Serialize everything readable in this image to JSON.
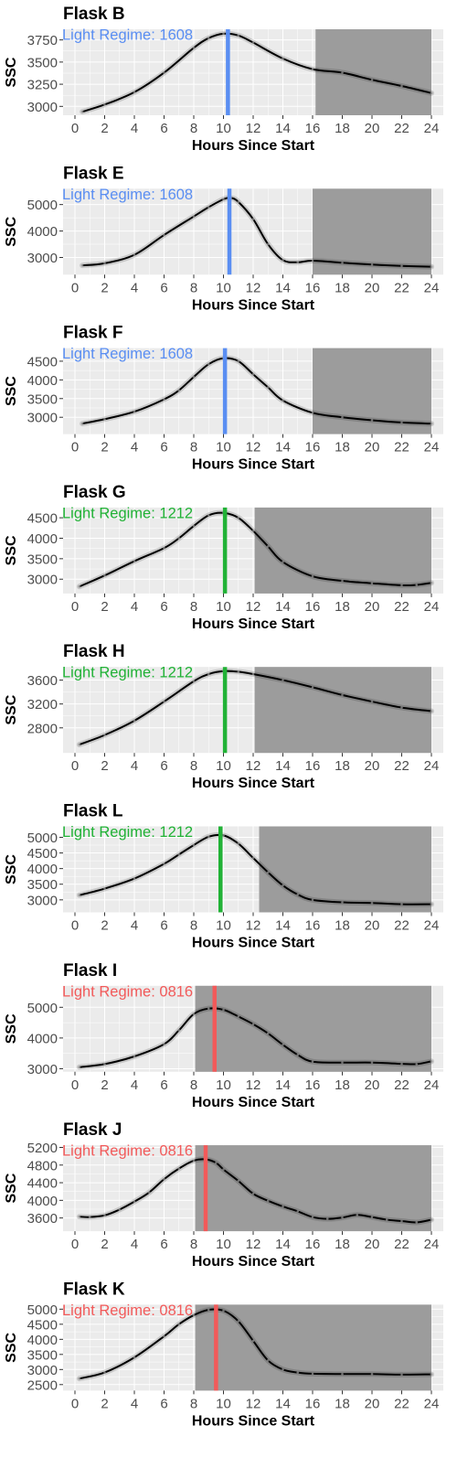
{
  "chart_data": [
    {
      "type": "line",
      "title": "Flask B",
      "xlabel": "Hours Since Start",
      "ylabel": "SSC",
      "xlim": [
        -0.8,
        24.8
      ],
      "ylim": [
        2900,
        3870
      ],
      "xticks": [
        0,
        2,
        4,
        6,
        8,
        10,
        12,
        14,
        16,
        18,
        20,
        22,
        24
      ],
      "yticks": [
        3000,
        3250,
        3500,
        3750
      ],
      "annotation": {
        "label": "Light Regime:",
        "value": "1608",
        "color": "#5a8ef2",
        "x": 10.3
      },
      "dark_period": [
        16.2,
        24
      ],
      "colors": {
        "panel": "#ebebeb",
        "grid": "#ffffff",
        "dark": "#9c9c9c",
        "line": "#000000"
      },
      "x": [
        0.5,
        2,
        4,
        6,
        8,
        9,
        10,
        11,
        12,
        14,
        16,
        18,
        20,
        22,
        24
      ],
      "values": [
        2940,
        3020,
        3160,
        3380,
        3660,
        3770,
        3820,
        3800,
        3720,
        3540,
        3420,
        3380,
        3300,
        3230,
        3150
      ]
    },
    {
      "type": "line",
      "title": "Flask E",
      "xlabel": "Hours Since Start",
      "ylabel": "SSC",
      "xlim": [
        -0.8,
        24.8
      ],
      "ylim": [
        2350,
        5600
      ],
      "xticks": [
        0,
        2,
        4,
        6,
        8,
        10,
        12,
        14,
        16,
        18,
        20,
        22,
        24
      ],
      "yticks": [
        3000,
        4000,
        5000
      ],
      "annotation": {
        "label": "Light Regime:",
        "value": "1608",
        "color": "#5a8ef2",
        "x": 10.4
      },
      "dark_period": [
        16.0,
        24
      ],
      "colors": {
        "panel": "#ebebeb",
        "grid": "#ffffff",
        "dark": "#9c9c9c",
        "line": "#000000"
      },
      "x": [
        0.5,
        2,
        4,
        6,
        8,
        9,
        10,
        10.5,
        11,
        12,
        13,
        14,
        15,
        16,
        18,
        20,
        22,
        24
      ],
      "values": [
        2700,
        2780,
        3100,
        3850,
        4550,
        4900,
        5200,
        5250,
        5100,
        4450,
        3500,
        2900,
        2820,
        2880,
        2800,
        2730,
        2680,
        2650
      ]
    },
    {
      "type": "line",
      "title": "Flask F",
      "xlabel": "Hours Since Start",
      "ylabel": "SSC",
      "xlim": [
        -0.8,
        24.8
      ],
      "ylim": [
        2550,
        4850
      ],
      "xticks": [
        0,
        2,
        4,
        6,
        8,
        10,
        12,
        14,
        16,
        18,
        20,
        22,
        24
      ],
      "yticks": [
        3000,
        3500,
        4000,
        4500
      ],
      "annotation": {
        "label": "Light Regime:",
        "value": "1608",
        "color": "#5a8ef2",
        "x": 10.1
      },
      "dark_period": [
        16.0,
        24
      ],
      "colors": {
        "panel": "#ebebeb",
        "grid": "#ffffff",
        "dark": "#9c9c9c",
        "line": "#000000"
      },
      "x": [
        0.5,
        2,
        4,
        6,
        7,
        8,
        9,
        10,
        11,
        12,
        13,
        14,
        16,
        18,
        20,
        22,
        24
      ],
      "values": [
        2830,
        2950,
        3150,
        3480,
        3720,
        4080,
        4420,
        4580,
        4500,
        4150,
        3800,
        3450,
        3120,
        3000,
        2920,
        2860,
        2830
      ]
    },
    {
      "type": "line",
      "title": "Flask G",
      "xlabel": "Hours Since Start",
      "ylabel": "SSC",
      "xlim": [
        -0.8,
        24.8
      ],
      "ylim": [
        2650,
        4750
      ],
      "xticks": [
        0,
        2,
        4,
        6,
        8,
        10,
        12,
        14,
        16,
        18,
        20,
        22,
        24
      ],
      "yticks": [
        3000,
        3500,
        4000,
        4500
      ],
      "annotation": {
        "label": "Light Regime:",
        "value": "1212",
        "color": "#21b236",
        "x": 10.1
      },
      "dark_period": [
        12.1,
        24
      ],
      "colors": {
        "panel": "#ebebeb",
        "grid": "#ffffff",
        "dark": "#9c9c9c",
        "line": "#000000"
      },
      "x": [
        0.3,
        2,
        4,
        6,
        7,
        8,
        9,
        10,
        11,
        12,
        13,
        14,
        16,
        18,
        20,
        22,
        23,
        24
      ],
      "values": [
        2820,
        3090,
        3440,
        3760,
        4000,
        4300,
        4560,
        4620,
        4500,
        4180,
        3800,
        3420,
        3070,
        2960,
        2900,
        2850,
        2860,
        2910
      ]
    },
    {
      "type": "line",
      "title": "Flask H",
      "xlabel": "Hours Since Start",
      "ylabel": "SSC",
      "xlim": [
        -0.8,
        24.8
      ],
      "ylim": [
        2380,
        3820
      ],
      "xticks": [
        0,
        2,
        4,
        6,
        8,
        10,
        12,
        14,
        16,
        18,
        20,
        22,
        24
      ],
      "yticks": [
        2800,
        3200,
        3600
      ],
      "annotation": {
        "label": "Light Regime:",
        "value": "1212",
        "color": "#21b236",
        "x": 10.1
      },
      "dark_period": [
        12.1,
        24
      ],
      "colors": {
        "panel": "#ebebeb",
        "grid": "#ffffff",
        "dark": "#9c9c9c",
        "line": "#000000"
      },
      "x": [
        0.3,
        2,
        4,
        6,
        8,
        9,
        10,
        11,
        12,
        14,
        16,
        18,
        20,
        22,
        24
      ],
      "values": [
        2520,
        2680,
        2920,
        3240,
        3580,
        3700,
        3750,
        3740,
        3700,
        3600,
        3480,
        3350,
        3240,
        3140,
        3080
      ]
    },
    {
      "type": "line",
      "title": "Flask L",
      "xlabel": "Hours Since Start",
      "ylabel": "SSC",
      "xlim": [
        -0.8,
        24.8
      ],
      "ylim": [
        2600,
        5350
      ],
      "xticks": [
        0,
        2,
        4,
        6,
        8,
        10,
        12,
        14,
        16,
        18,
        20,
        22,
        24
      ],
      "yticks": [
        3000,
        3500,
        4000,
        4500,
        5000
      ],
      "annotation": {
        "label": "Light Regime:",
        "value": "1212",
        "color": "#21b236",
        "x": 9.8
      },
      "dark_period": [
        12.4,
        24
      ],
      "colors": {
        "panel": "#ebebeb",
        "grid": "#ffffff",
        "dark": "#9c9c9c",
        "line": "#000000"
      },
      "x": [
        0.3,
        2,
        4,
        6,
        7,
        8,
        9,
        10,
        11,
        12,
        13,
        14,
        15,
        16,
        18,
        20,
        22,
        24
      ],
      "values": [
        3150,
        3360,
        3680,
        4150,
        4450,
        4750,
        5020,
        5060,
        4800,
        4340,
        3880,
        3460,
        3170,
        3000,
        2920,
        2900,
        2860,
        2860
      ]
    },
    {
      "type": "line",
      "title": "Flask I",
      "xlabel": "Hours Since Start",
      "ylabel": "SSC",
      "xlim": [
        -0.8,
        24.8
      ],
      "ylim": [
        2900,
        5700
      ],
      "xticks": [
        0,
        2,
        4,
        6,
        8,
        10,
        12,
        14,
        16,
        18,
        20,
        22,
        24
      ],
      "yticks": [
        3000,
        4000,
        5000
      ],
      "annotation": {
        "label": "Light Regime:",
        "value": "0816",
        "color": "#f25a5a",
        "x": 9.4
      },
      "dark_period": [
        8.1,
        24
      ],
      "colors": {
        "panel": "#ebebeb",
        "grid": "#ffffff",
        "dark": "#9c9c9c",
        "line": "#000000"
      },
      "x": [
        0.3,
        2,
        4,
        6,
        7,
        8,
        9,
        10,
        11,
        12,
        13,
        14,
        15,
        16,
        18,
        20,
        22,
        23,
        24
      ],
      "values": [
        3050,
        3150,
        3400,
        3800,
        4250,
        4780,
        4960,
        4920,
        4700,
        4450,
        4150,
        3780,
        3450,
        3230,
        3200,
        3200,
        3160,
        3150,
        3240
      ]
    },
    {
      "type": "line",
      "title": "Flask J",
      "xlabel": "Hours Since Start",
      "ylabel": "SSC",
      "xlim": [
        -0.8,
        24.8
      ],
      "ylim": [
        3300,
        5250
      ],
      "xticks": [
        0,
        2,
        4,
        6,
        8,
        10,
        12,
        14,
        16,
        18,
        20,
        22,
        24
      ],
      "yticks": [
        3600,
        4000,
        4400,
        4800,
        5200
      ],
      "annotation": {
        "label": "Light Regime:",
        "value": "0816",
        "color": "#f25a5a",
        "x": 8.8
      },
      "dark_period": [
        8.1,
        24
      ],
      "colors": {
        "panel": "#ebebeb",
        "grid": "#ffffff",
        "dark": "#9c9c9c",
        "line": "#000000"
      },
      "x": [
        0.3,
        1,
        2,
        3,
        4,
        5,
        6,
        7,
        8,
        8.8,
        9.5,
        10,
        11,
        12,
        13,
        14,
        15,
        16,
        17,
        18,
        19,
        20,
        21,
        22,
        23,
        24
      ],
      "values": [
        3630,
        3620,
        3660,
        3790,
        3970,
        4180,
        4480,
        4720,
        4900,
        4930,
        4850,
        4700,
        4440,
        4150,
        3990,
        3860,
        3750,
        3620,
        3580,
        3610,
        3670,
        3620,
        3560,
        3530,
        3500,
        3560
      ]
    },
    {
      "type": "line",
      "title": "Flask K",
      "xlabel": "Hours Since Start",
      "ylabel": "SSC",
      "xlim": [
        -0.8,
        24.8
      ],
      "ylim": [
        2300,
        5150
      ],
      "xticks": [
        0,
        2,
        4,
        6,
        8,
        10,
        12,
        14,
        16,
        18,
        20,
        22,
        24
      ],
      "yticks": [
        2500,
        3000,
        3500,
        4000,
        4500,
        5000
      ],
      "annotation": {
        "label": "Light Regime:",
        "value": "0816",
        "color": "#f25a5a",
        "x": 9.5
      },
      "dark_period": [
        8.1,
        24
      ],
      "colors": {
        "panel": "#ebebeb",
        "grid": "#ffffff",
        "dark": "#9c9c9c",
        "line": "#000000"
      },
      "x": [
        0.3,
        2,
        4,
        6,
        7,
        8,
        9,
        10,
        11,
        12,
        13,
        14,
        15,
        16,
        18,
        20,
        22,
        24
      ],
      "values": [
        2700,
        2900,
        3400,
        4100,
        4500,
        4800,
        4980,
        4950,
        4600,
        3950,
        3300,
        3000,
        2900,
        2860,
        2850,
        2850,
        2830,
        2840
      ]
    }
  ]
}
